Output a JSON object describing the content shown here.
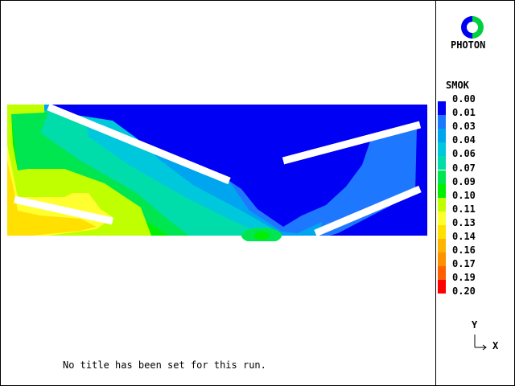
{
  "app": {
    "logo_text": "PHOTON",
    "title": "No title has been set for this run."
  },
  "chart_data": {
    "type": "heatmap",
    "subtype": "contour",
    "variable": "SMOK",
    "legend_position": "right",
    "levels": [
      "0.00",
      "0.01",
      "0.03",
      "0.04",
      "0.06",
      "0.07",
      "0.09",
      "0.10",
      "0.11",
      "0.13",
      "0.14",
      "0.16",
      "0.17",
      "0.19",
      "0.20"
    ],
    "colors": [
      "#0000f5",
      "#1e78ff",
      "#00a5f0",
      "#00c8dc",
      "#00dcaa",
      "#00e650",
      "#00f000",
      "#bfff00",
      "#ffff30",
      "#ffe000",
      "#ffb400",
      "#ff9000",
      "#ff6000",
      "#ff0000"
    ],
    "axes": {
      "x": "X",
      "y": "Y"
    }
  }
}
